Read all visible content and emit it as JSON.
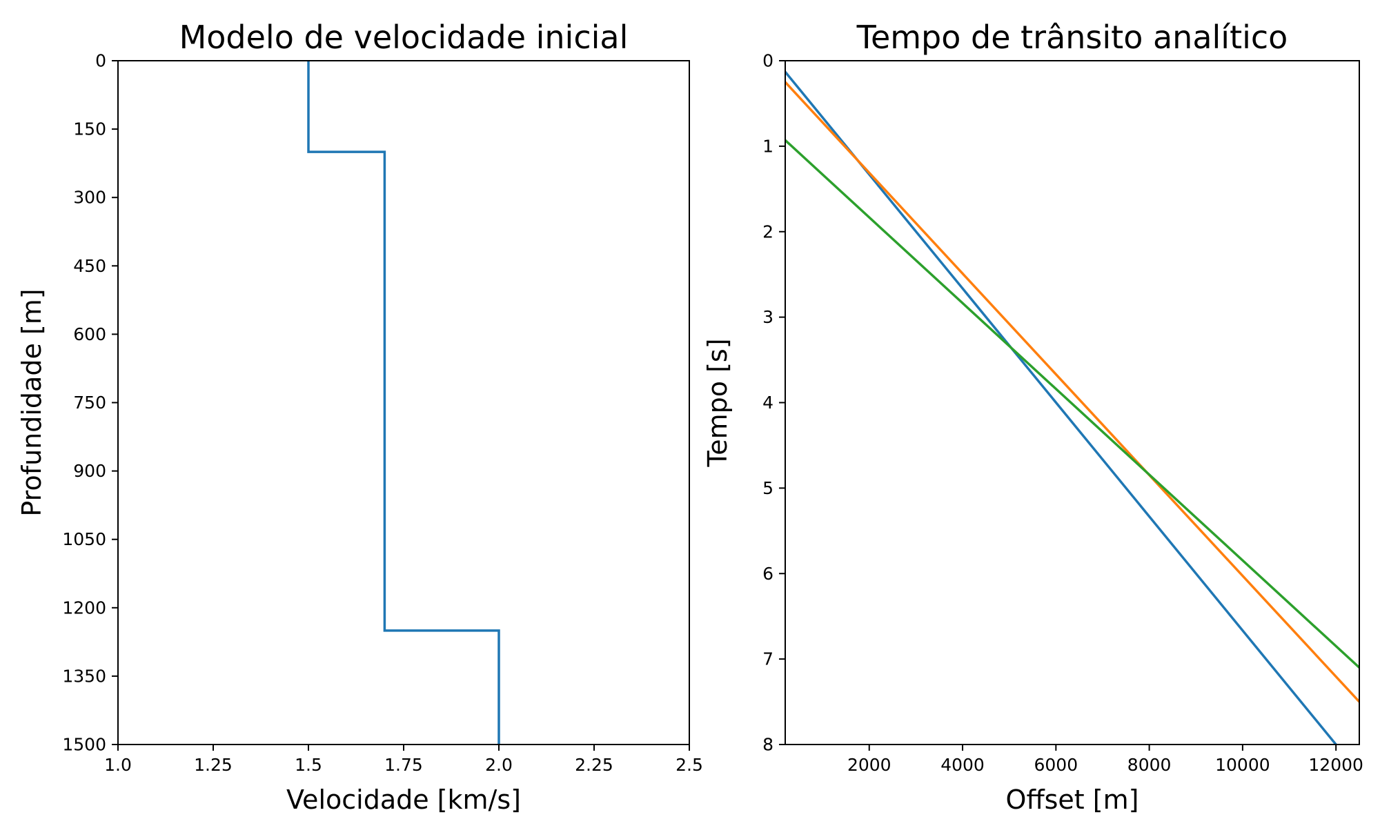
{
  "colors": {
    "blue": "#1f77b4",
    "orange": "#ff7f0e",
    "green": "#2ca02c"
  },
  "chart_data": [
    {
      "type": "line",
      "title": "Modelo de velocidade inicial",
      "xlabel": "Velocidade [km/s]",
      "ylabel": "Profundidade [m]",
      "xlim": [
        1.0,
        2.5
      ],
      "ylim": [
        1500,
        0
      ],
      "y_inverted": true,
      "xticks": [
        1.0,
        1.25,
        1.5,
        1.75,
        2.0,
        2.25,
        2.5
      ],
      "xtick_labels": [
        "1.0",
        "1.25",
        "1.5",
        "1.75",
        "2.0",
        "2.25",
        "2.5"
      ],
      "yticks": [
        0,
        150,
        300,
        450,
        600,
        750,
        900,
        1050,
        1200,
        1350,
        1500
      ],
      "ytick_labels": [
        "0",
        "150",
        "300",
        "450",
        "600",
        "750",
        "900",
        "1050",
        "1200",
        "1350",
        "1500"
      ],
      "grid": false,
      "series": [
        {
          "color": "#1f77b4",
          "x": [
            1.5,
            1.5,
            1.7,
            1.7,
            2.0,
            2.0
          ],
          "y": [
            0,
            200,
            200,
            1250,
            1250,
            1500
          ]
        }
      ]
    },
    {
      "type": "line",
      "title": "Tempo de trânsito analítico",
      "xlabel": "Offset [m]",
      "ylabel": "Tempo [s]",
      "xlim": [
        200,
        12500
      ],
      "ylim": [
        8,
        0
      ],
      "y_inverted": true,
      "xticks": [
        2000,
        4000,
        6000,
        8000,
        10000,
        12000
      ],
      "xtick_labels": [
        "2000",
        "4000",
        "6000",
        "8000",
        "10000",
        "12000"
      ],
      "yticks": [
        0,
        1,
        2,
        3,
        4,
        5,
        6,
        7,
        8
      ],
      "ytick_labels": [
        "0",
        "1",
        "2",
        "3",
        "4",
        "5",
        "6",
        "7",
        "8"
      ],
      "grid": false,
      "series": [
        {
          "color": "#1f77b4",
          "x": [
            200,
            12000
          ],
          "y": [
            0.13,
            8.0
          ]
        },
        {
          "color": "#ff7f0e",
          "x": [
            200,
            12500
          ],
          "y": [
            0.25,
            7.5
          ]
        },
        {
          "color": "#2ca02c",
          "x": [
            200,
            12500
          ],
          "y": [
            0.93,
            7.1
          ]
        }
      ]
    }
  ]
}
